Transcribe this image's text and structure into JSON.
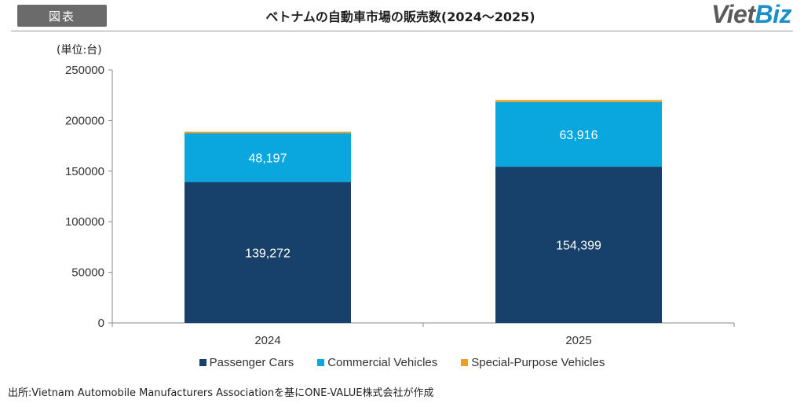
{
  "header": {
    "badge": "図表",
    "title": "ベトナムの自動車市場の販売数(2024〜2025)",
    "logo_part1": "Viet",
    "logo_part2": "Biz"
  },
  "source": "出所:Vietnam Automobile Manufacturers Associationを基にONE-VALUE株式会社が作成",
  "colors": {
    "passenger": "#17416a",
    "commercial": "#0aa7de",
    "special": "#f0a020"
  },
  "chart_data": {
    "type": "bar",
    "stacked": true,
    "title": "ベトナムの自動車市場の販売数(2024〜2025)",
    "unit_label": "(単位:台)",
    "categories": [
      "2024",
      "2025"
    ],
    "series": [
      {
        "name": "Passenger Cars",
        "values": [
          139272,
          154399
        ],
        "labels": [
          "139,272",
          "154,399"
        ]
      },
      {
        "name": "Commercial Vehicles",
        "values": [
          48197,
          63916
        ],
        "labels": [
          "48,197",
          "63,916"
        ]
      },
      {
        "name": "Special-Purpose Vehicles",
        "values": [
          1500,
          2000
        ],
        "labels": [
          "",
          ""
        ]
      }
    ],
    "ylim": [
      0,
      250000
    ],
    "yticks": [
      "0",
      "50000",
      "100000",
      "150000",
      "200000",
      "250000"
    ],
    "legend_position": "bottom",
    "grid": false
  }
}
